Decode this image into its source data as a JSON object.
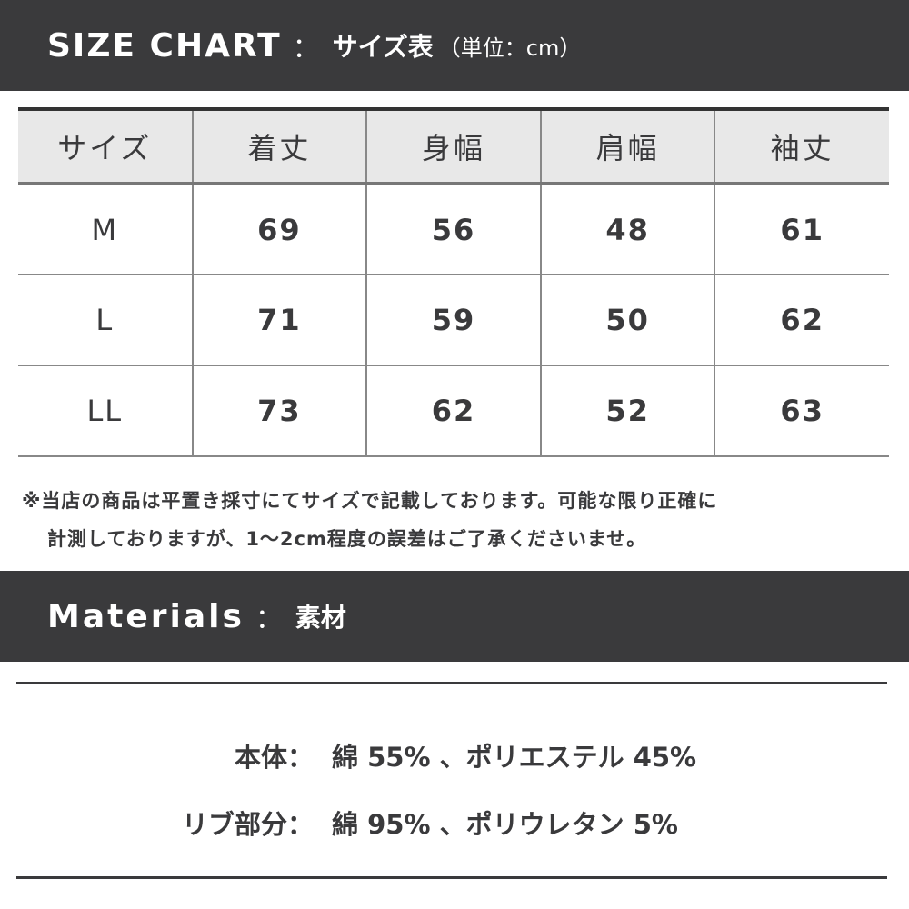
{
  "size_chart": {
    "title_en": "SIZE CHART",
    "separator": "：",
    "title_jp": "サイズ表",
    "unit": "（単位：cm）",
    "headers": [
      "サイズ",
      "着丈",
      "身幅",
      "肩幅",
      "袖丈"
    ],
    "rows": [
      [
        "M",
        "69",
        "56",
        "48",
        "61"
      ],
      [
        "L",
        "71",
        "59",
        "50",
        "62"
      ],
      [
        "LL",
        "73",
        "62",
        "52",
        "63"
      ]
    ]
  },
  "note": {
    "line1": "※当店の商品は平置き採寸にてサイズで記載しております。可能な限り正確に",
    "line2": "計測しておりますが、1～2cm程度の誤差はご了承くださいませ。"
  },
  "materials": {
    "title_en": "Materials",
    "separator": "：",
    "title_jp": "素材",
    "items": [
      {
        "label": "本体：",
        "value": "綿 55% 、ポリエステル 45%"
      },
      {
        "label": "リブ部分：",
        "value": "綿 95% 、ポリウレタン 5%"
      }
    ]
  }
}
